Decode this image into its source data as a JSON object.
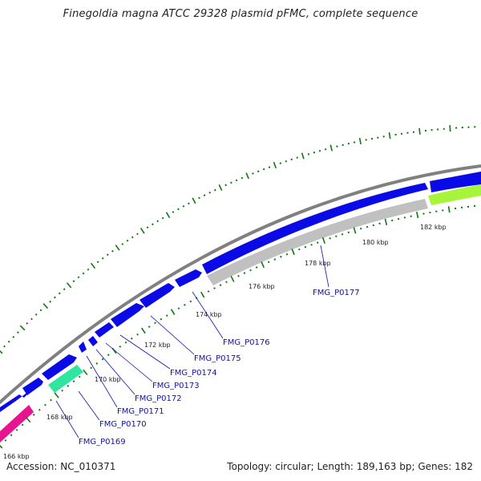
{
  "title": "Finegoldia magna ATCC 29328 plasmid pFMC, complete sequence",
  "footer": {
    "accession": "Accession: NC_010371",
    "info": "Topology: circular; Length: 189,163 bp; Genes: 182"
  },
  "ticks": [
    "166 kbp",
    "168 kbp",
    "170 kbp",
    "172 kbp",
    "174 kbp",
    "176 kbp",
    "178 kbp",
    "180 kbp",
    "182 kbp"
  ],
  "gene_labels": [
    "FMG_P0169",
    "FMG_P0170",
    "FMG_P0171",
    "FMG_P0172",
    "FMG_P0173",
    "FMG_P0174",
    "FMG_P0175",
    "FMG_P0176",
    "FMG_P0177"
  ],
  "colors": {
    "forward_gene": "#0a0ae6",
    "backbone": "#808080",
    "reverse_gene_gray": "#c0c0c0",
    "gene_pink": "#e8138f",
    "gene_green": "#2fe5a0",
    "gene_lime": "#a6f53a",
    "tick": "#117711",
    "label_text": "#1010b0"
  }
}
